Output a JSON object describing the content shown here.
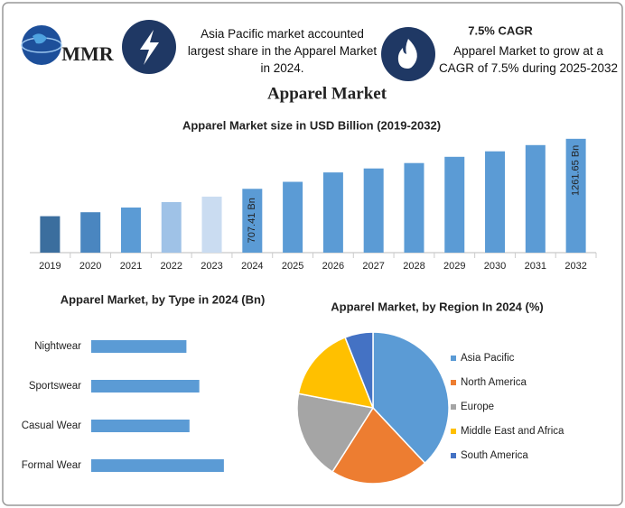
{
  "header": {
    "logo": "MMR",
    "highlight": "Asia Pacific market accounted largest share in the Apparel Market in 2024.",
    "cagr_title": "7.5% CAGR",
    "cagr_text": "Apparel Market to grow at a CAGR of 7.5% during 2025-2032",
    "title": "Apparel Market"
  },
  "chart_data": [
    {
      "type": "bar",
      "title": "Apparel Market size in USD Billion (2019-2032)",
      "categories": [
        "2019",
        "2020",
        "2021",
        "2022",
        "2023",
        "2024",
        "2025",
        "2026",
        "2027",
        "2028",
        "2029",
        "2030",
        "2031",
        "2032"
      ],
      "values": [
        404,
        448,
        500,
        560,
        621,
        707.41,
        785,
        889,
        933,
        993,
        1062,
        1123,
        1192,
        1261.65
      ],
      "value_labels": [
        null,
        null,
        null,
        null,
        null,
        "707.41 Bn",
        null,
        null,
        null,
        null,
        null,
        null,
        null,
        "1261.65 Bn"
      ],
      "colors": [
        "#3b6e9e",
        "#4a86c0",
        "#5b9bd5",
        "#9fc2e7",
        "#cadcf1",
        "#5b9bd5",
        "#5b9bd5",
        "#5b9bd5",
        "#5b9bd5",
        "#5b9bd5",
        "#5b9bd5",
        "#5b9bd5",
        "#5b9bd5",
        "#5b9bd5"
      ],
      "ylim": [
        0,
        1300
      ]
    },
    {
      "type": "bar",
      "orientation": "horizontal",
      "title": "Apparel Market, by Type in 2024 (Bn)",
      "categories": [
        "Nightwear",
        "Sportswear",
        "Casual Wear",
        "Formal Wear"
      ],
      "values": [
        155,
        176,
        160,
        216
      ],
      "color": "#5b9bd5",
      "xlim": [
        0,
        250
      ]
    },
    {
      "type": "pie",
      "title": "Apparel Market, by Region In 2024 (%)",
      "categories": [
        "Asia Pacific",
        "North America",
        "Europe",
        "Middle East and Africa",
        "South America"
      ],
      "values": [
        38,
        21,
        19,
        16,
        6
      ],
      "colors": [
        "#5b9bd5",
        "#ed7d31",
        "#a5a5a5",
        "#ffc000",
        "#4472c4"
      ]
    }
  ]
}
